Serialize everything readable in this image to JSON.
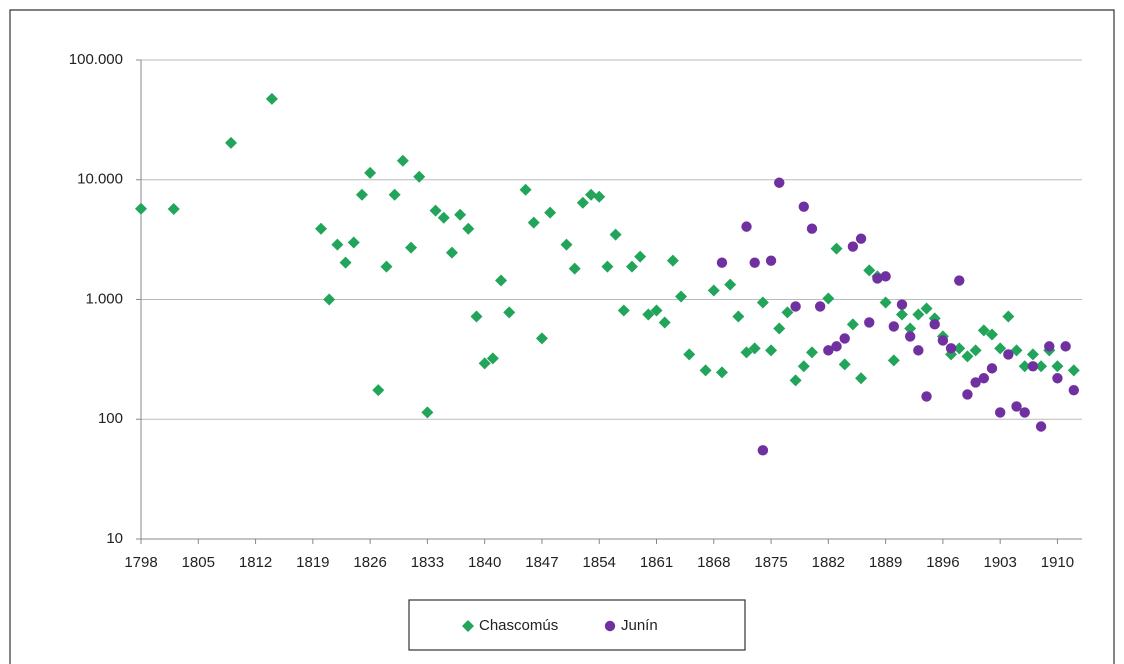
{
  "chart_data": {
    "type": "scatter",
    "yscale": "log",
    "grid": true,
    "xlim": [
      1798,
      1913
    ],
    "xticks": [
      1798,
      1805,
      1812,
      1819,
      1826,
      1833,
      1840,
      1847,
      1854,
      1861,
      1868,
      1875,
      1882,
      1889,
      1896,
      1903,
      1910
    ],
    "ylim": [
      10,
      100000
    ],
    "yticks": [
      10,
      100,
      {
        "value": 1000,
        "label": "1.000"
      },
      {
        "value": 10000,
        "label": "10.000"
      },
      {
        "value": 100000,
        "label": "100.000"
      }
    ],
    "series": [
      {
        "name": "Chascomús",
        "color": "#22a55a",
        "marker": "diamond",
        "x": [
          1798,
          1802,
          1809,
          1814,
          1820,
          1821,
          1822,
          1823,
          1824,
          1825,
          1826,
          1827,
          1828,
          1829,
          1830,
          1831,
          1832,
          1833,
          1834,
          1835,
          1836,
          1837,
          1838,
          1839,
          1840,
          1841,
          1842,
          1843,
          1845,
          1846,
          1847,
          1848,
          1850,
          1851,
          1852,
          1853,
          1854,
          1855,
          1856,
          1857,
          1858,
          1859,
          1860,
          1861,
          1862,
          1863,
          1864,
          1865,
          1867,
          1868,
          1869,
          1870,
          1871,
          1872,
          1873,
          1874,
          1875,
          1876,
          1877,
          1878,
          1879,
          1880,
          1882,
          1883,
          1884,
          1885,
          1886,
          1887,
          1888,
          1889,
          1890,
          1891,
          1892,
          1893,
          1894,
          1895,
          1896,
          1897,
          1898,
          1899,
          1900,
          1901,
          1902,
          1903,
          1904,
          1905,
          1906,
          1907,
          1908,
          1909,
          1910,
          1912
        ],
        "values": [
          5730,
          5700,
          20300,
          47300,
          3900,
          1000,
          2870,
          2030,
          2990,
          7500,
          11400,
          175,
          1880,
          7500,
          14400,
          2710,
          10600,
          114,
          5520,
          4820,
          2460,
          5100,
          3900,
          721,
          293,
          322,
          1440,
          780,
          8260,
          4380,
          473,
          5310,
          2870,
          1810,
          6430,
          7500,
          7210,
          1880,
          3480,
          810,
          1880,
          2280,
          750,
          810,
          643,
          2110,
          1060,
          348,
          256,
          1190,
          246,
          1330,
          721,
          362,
          391,
          944,
          376,
          573,
          780,
          211,
          277,
          362,
          1020,
          2660,
          287,
          620,
          220,
          1750,
          1560,
          944,
          310,
          750,
          573,
          750,
          841,
          695,
          492,
          348,
          391,
          335,
          376,
          552,
          510,
          391,
          721,
          376,
          277,
          348,
          277,
          376,
          277,
          256
        ]
      },
      {
        "name": "Junín",
        "color": "#7030a0",
        "marker": "circle",
        "x": [
          1869,
          1872,
          1873,
          1874,
          1875,
          1876,
          1878,
          1879,
          1880,
          1881,
          1882,
          1883,
          1884,
          1885,
          1886,
          1887,
          1888,
          1889,
          1890,
          1891,
          1892,
          1893,
          1894,
          1895,
          1896,
          1897,
          1898,
          1899,
          1900,
          1901,
          1902,
          1903,
          1904,
          1905,
          1906,
          1907,
          1908,
          1909,
          1910,
          1911,
          1912
        ],
        "values": [
          2030,
          4060,
          2030,
          55,
          2110,
          9440,
          875,
          5960,
          3900,
          875,
          376,
          406,
          473,
          2770,
          3220,
          643,
          1500,
          1560,
          596,
          908,
          492,
          376,
          155,
          620,
          455,
          391,
          1440,
          161,
          203,
          220,
          266,
          114,
          348,
          128,
          114,
          277,
          87,
          406,
          220,
          406,
          175
        ]
      }
    ]
  }
}
